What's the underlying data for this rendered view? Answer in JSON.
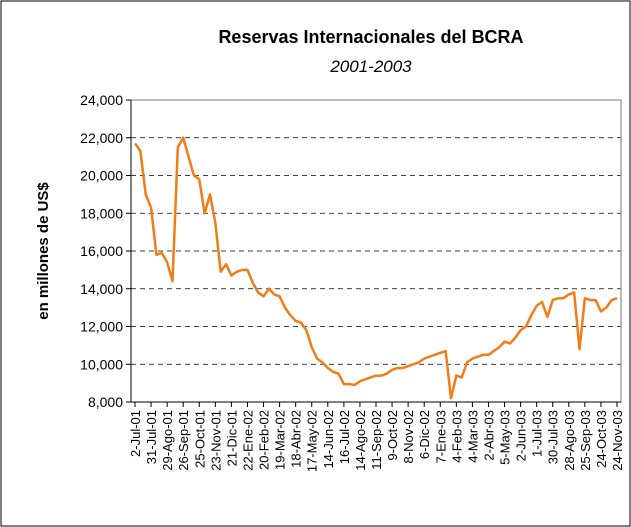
{
  "chart_data": {
    "type": "line",
    "title": "Reservas Internacionales del BCRA",
    "subtitle": "2001-2003",
    "y_label": "en millones de US$",
    "categories": [
      "2-Jul-01",
      null,
      null,
      "31-Jul-01",
      null,
      null,
      "29-Ago-01",
      null,
      null,
      "26-Sep-01",
      null,
      null,
      "25-Oct-01",
      null,
      null,
      "23-Nov-01",
      null,
      null,
      "21-Dic-01",
      null,
      null,
      "22-Ene-02",
      null,
      null,
      "20-Feb-02",
      null,
      null,
      "19-Mar-02",
      null,
      null,
      "18-Abr-02",
      null,
      null,
      "17-May-02",
      null,
      null,
      "14-Jun-02",
      null,
      null,
      "16-Jul-02",
      null,
      null,
      "14-Ago-02",
      null,
      null,
      "11-Sep-02",
      null,
      null,
      "9-Oct-02",
      null,
      null,
      "8-Nov-02",
      null,
      null,
      "6-Dic-02",
      null,
      null,
      "7-Ene-03",
      null,
      null,
      "4-Feb-03",
      null,
      null,
      "4-Mar-03",
      null,
      null,
      "2-Abr-03",
      null,
      null,
      "5-May-03",
      null,
      null,
      "2-Jun-03",
      null,
      null,
      "1-Jul-03",
      null,
      null,
      "30-Jul-03",
      null,
      null,
      "28-Ago-03",
      null,
      null,
      "25-Sep-03",
      null,
      null,
      "24-Oct-03",
      null,
      null,
      "24-Nov-03"
    ],
    "series": [
      {
        "name": "Reservas",
        "color": "#f07d1a",
        "values": [
          21700,
          21300,
          19000,
          18300,
          15800,
          15900,
          15400,
          14400,
          21500,
          22000,
          21000,
          20000,
          19800,
          18000,
          19000,
          17500,
          14900,
          15300,
          14700,
          14900,
          15000,
          15000,
          14300,
          13800,
          13600,
          14000,
          13700,
          13600,
          13000,
          12600,
          12300,
          12200,
          11800,
          10900,
          10300,
          10100,
          9800,
          9600,
          9500,
          8950,
          8950,
          8900,
          9100,
          9200,
          9300,
          9400,
          9400,
          9500,
          9700,
          9800,
          9800,
          9900,
          10000,
          10100,
          10300,
          10400,
          10500,
          10600,
          10700,
          8200,
          9400,
          9300,
          10100,
          10300,
          10400,
          10500,
          10500,
          10700,
          10900,
          11200,
          11100,
          11400,
          11800,
          12000,
          12600,
          13100,
          13300,
          12500,
          13400,
          13500,
          13500,
          13700,
          13800,
          10800,
          13500,
          13400,
          13400,
          12800,
          13000,
          13400,
          13500
        ]
      }
    ],
    "ylim": [
      8000,
      24000
    ],
    "yticks": [
      {
        "value": 8000,
        "label": "8,000"
      },
      {
        "value": 10000,
        "label": "10,000"
      },
      {
        "value": 12000,
        "label": "12,000"
      },
      {
        "value": 14000,
        "label": "14,000"
      },
      {
        "value": 16000,
        "label": "16,000"
      },
      {
        "value": 18000,
        "label": "18,000"
      },
      {
        "value": 20000,
        "label": "20,000"
      },
      {
        "value": 22000,
        "label": "22,000"
      },
      {
        "value": 24000,
        "label": "24,000"
      }
    ],
    "grid": true
  }
}
